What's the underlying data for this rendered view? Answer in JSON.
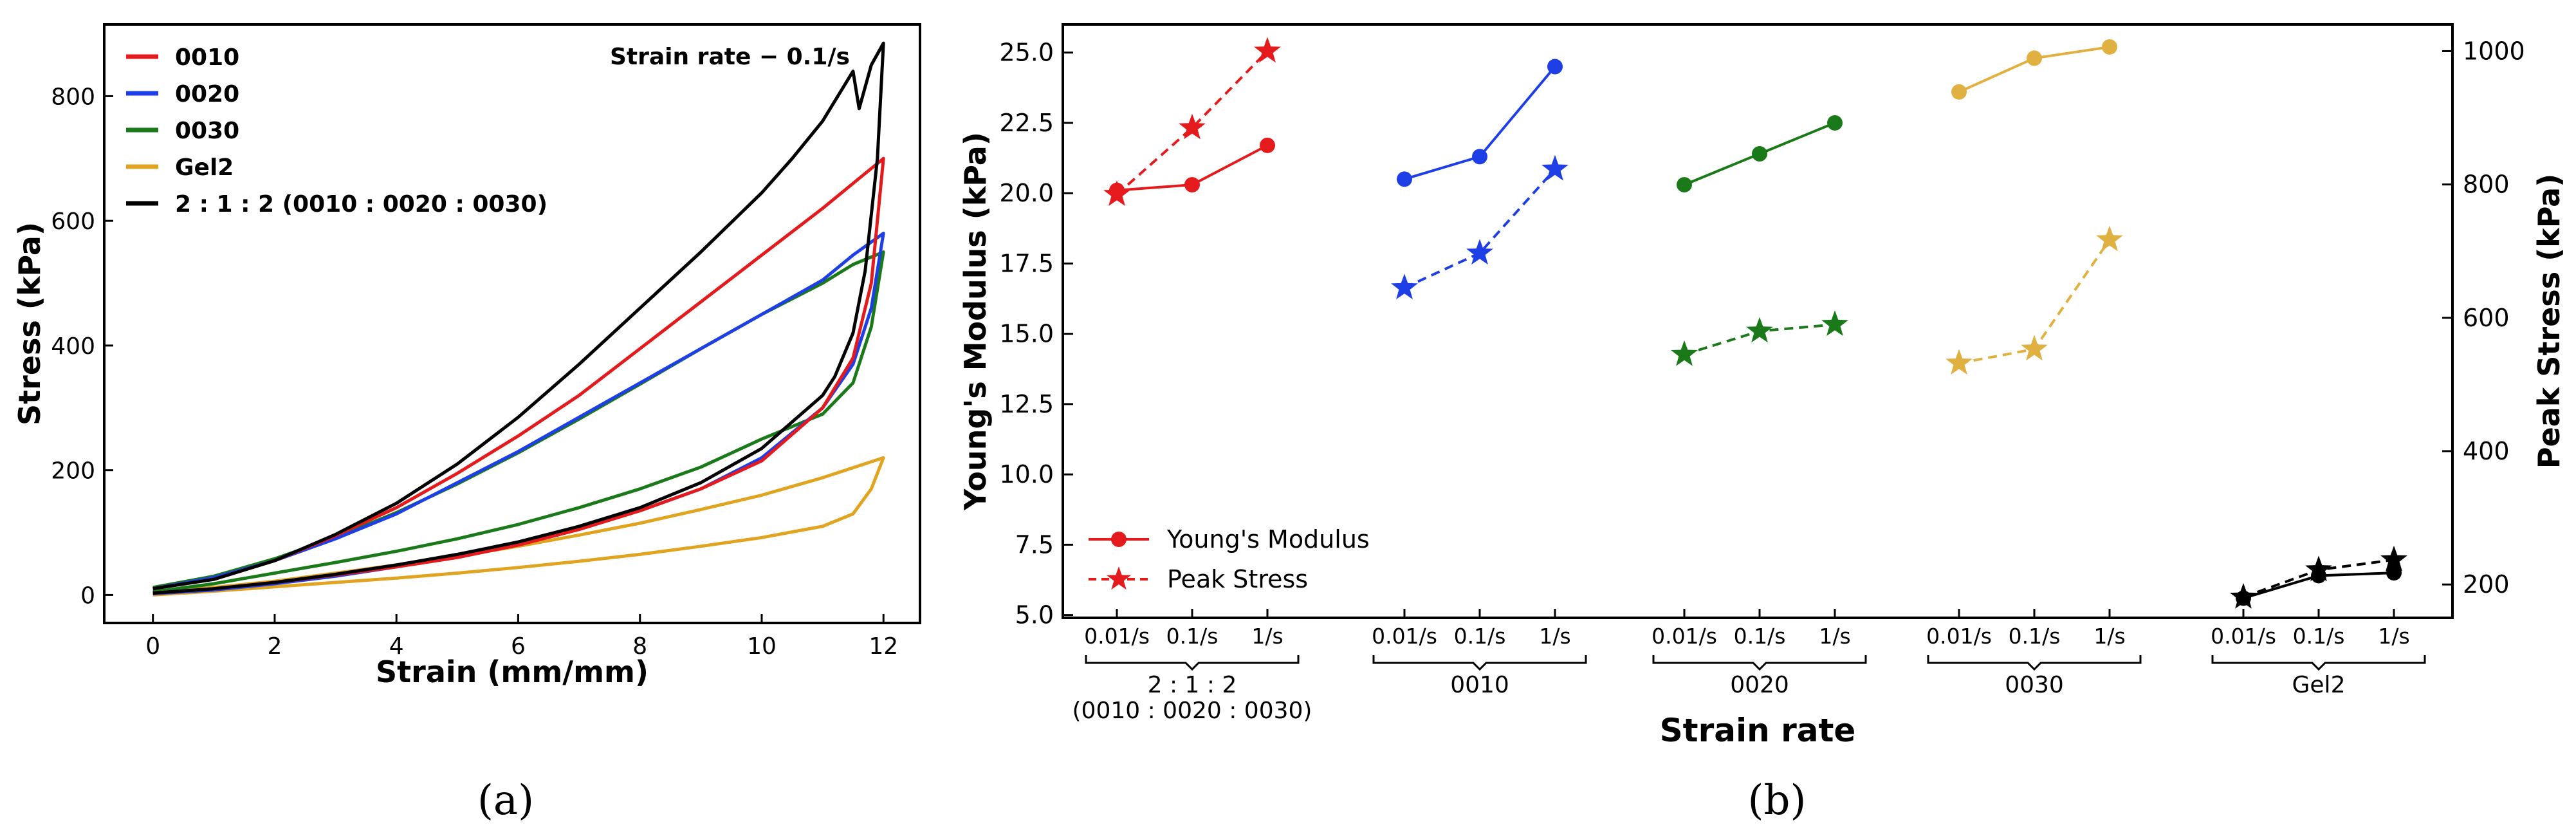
{
  "panels": {
    "a_label": "(a)",
    "b_label": "(b)"
  },
  "chart_data": [
    {
      "type": "line",
      "panel": "(a)",
      "title": "",
      "annotation": "Strain rate − 0.1/s",
      "xlabel": "Strain (mm/mm)",
      "ylabel": "Stress (kPa)",
      "xlim": [
        -0.8,
        12.6
      ],
      "ylim": [
        -45,
        915
      ],
      "xticks": [
        0,
        2,
        4,
        6,
        8,
        10,
        12
      ],
      "yticks": [
        0,
        200,
        400,
        600,
        800
      ],
      "legend_position": "top-left",
      "series": [
        {
          "name": "0010",
          "color": "#e41a1c",
          "loading": [
            [
              0,
              10
            ],
            [
              1,
              25
            ],
            [
              2,
              55
            ],
            [
              3,
              95
            ],
            [
              4,
              140
            ],
            [
              5,
              195
            ],
            [
              6,
              255
            ],
            [
              7,
              320
            ],
            [
              8,
              395
            ],
            [
              9,
              470
            ],
            [
              10,
              545
            ],
            [
              11,
              620
            ],
            [
              11.5,
              660
            ],
            [
              12,
              700
            ]
          ],
          "unloading": [
            [
              12,
              700
            ],
            [
              11.8,
              500
            ],
            [
              11.5,
              380
            ],
            [
              11,
              300
            ],
            [
              10,
              215
            ],
            [
              9,
              170
            ],
            [
              8,
              135
            ],
            [
              7,
              105
            ],
            [
              6,
              80
            ],
            [
              5,
              60
            ],
            [
              4,
              45
            ],
            [
              3,
              32
            ],
            [
              2,
              20
            ],
            [
              1,
              10
            ],
            [
              0,
              3
            ]
          ]
        },
        {
          "name": "0020",
          "color": "#1f3fe6",
          "loading": [
            [
              0,
              10
            ],
            [
              1,
              28
            ],
            [
              2,
              55
            ],
            [
              3,
              90
            ],
            [
              4,
              130
            ],
            [
              5,
              180
            ],
            [
              6,
              230
            ],
            [
              7,
              285
            ],
            [
              8,
              340
            ],
            [
              9,
              395
            ],
            [
              10,
              450
            ],
            [
              11,
              505
            ],
            [
              11.5,
              545
            ],
            [
              12,
              580
            ]
          ],
          "unloading": [
            [
              12,
              580
            ],
            [
              11.8,
              460
            ],
            [
              11.5,
              370
            ],
            [
              11,
              300
            ],
            [
              10,
              220
            ],
            [
              9,
              170
            ],
            [
              8,
              135
            ],
            [
              7,
              108
            ],
            [
              6,
              82
            ],
            [
              5,
              62
            ],
            [
              4,
              45
            ],
            [
              3,
              30
            ],
            [
              2,
              18
            ],
            [
              1,
              8
            ],
            [
              0,
              2
            ]
          ]
        },
        {
          "name": "0030",
          "color": "#1a7a1a",
          "loading": [
            [
              0,
              12
            ],
            [
              1,
              30
            ],
            [
              2,
              58
            ],
            [
              3,
              92
            ],
            [
              4,
              132
            ],
            [
              5,
              178
            ],
            [
              6,
              228
            ],
            [
              7,
              282
            ],
            [
              8,
              338
            ],
            [
              9,
              395
            ],
            [
              10,
              450
            ],
            [
              11,
              500
            ],
            [
              11.5,
              530
            ],
            [
              12,
              550
            ]
          ],
          "unloading": [
            [
              12,
              550
            ],
            [
              11.8,
              430
            ],
            [
              11.5,
              340
            ],
            [
              11,
              290
            ],
            [
              10,
              250
            ],
            [
              9,
              205
            ],
            [
              8,
              170
            ],
            [
              7,
              140
            ],
            [
              6,
              113
            ],
            [
              5,
              90
            ],
            [
              4,
              70
            ],
            [
              3,
              52
            ],
            [
              2,
              35
            ],
            [
              1,
              18
            ],
            [
              0,
              5
            ]
          ]
        },
        {
          "name": "Gel2",
          "color": "#e0a420",
          "loading": [
            [
              0,
              4
            ],
            [
              1,
              12
            ],
            [
              2,
              22
            ],
            [
              3,
              35
            ],
            [
              4,
              48
            ],
            [
              5,
              62
            ],
            [
              6,
              78
            ],
            [
              7,
              96
            ],
            [
              8,
              115
            ],
            [
              9,
              137
            ],
            [
              10,
              160
            ],
            [
              11,
              188
            ],
            [
              11.5,
              204
            ],
            [
              12,
              220
            ]
          ],
          "unloading": [
            [
              12,
              220
            ],
            [
              11.8,
              170
            ],
            [
              11.5,
              130
            ],
            [
              11,
              110
            ],
            [
              10,
              92
            ],
            [
              9,
              78
            ],
            [
              8,
              65
            ],
            [
              7,
              54
            ],
            [
              6,
              44
            ],
            [
              5,
              35
            ],
            [
              4,
              27
            ],
            [
              3,
              20
            ],
            [
              2,
              13
            ],
            [
              1,
              6
            ],
            [
              0,
              0
            ]
          ]
        },
        {
          "name": "2 : 1 : 2 (0010 : 0020 : 0030)",
          "color": "#000000",
          "loading": [
            [
              0,
              10
            ],
            [
              1,
              25
            ],
            [
              2,
              55
            ],
            [
              3,
              97
            ],
            [
              4,
              147
            ],
            [
              5,
              210
            ],
            [
              6,
              285
            ],
            [
              7,
              370
            ],
            [
              8,
              460
            ],
            [
              9,
              550
            ],
            [
              10,
              645
            ],
            [
              10.5,
              700
            ],
            [
              11,
              760
            ],
            [
              11.5,
              840
            ],
            [
              11.6,
              780
            ],
            [
              11.8,
              850
            ],
            [
              12,
              885
            ]
          ],
          "unloading": [
            [
              12,
              885
            ],
            [
              11.9,
              700
            ],
            [
              11.7,
              520
            ],
            [
              11.5,
              420
            ],
            [
              11.2,
              350
            ],
            [
              11,
              320
            ],
            [
              10,
              235
            ],
            [
              9,
              180
            ],
            [
              8,
              140
            ],
            [
              7,
              110
            ],
            [
              6,
              85
            ],
            [
              5,
              65
            ],
            [
              4,
              48
            ],
            [
              3,
              33
            ],
            [
              2,
              20
            ],
            [
              1,
              10
            ],
            [
              0,
              3
            ]
          ]
        }
      ]
    },
    {
      "type": "line",
      "panel": "(b)",
      "title": "",
      "xlabel": "Strain rate",
      "ylabel": "Young's Modulus (kPa)",
      "ylabel_right": "Peak Stress (kPa)",
      "ylim": [
        4.9,
        26
      ],
      "ylim_right": [
        150,
        1040
      ],
      "yticks": [
        5.0,
        7.5,
        10.0,
        12.5,
        15.0,
        17.5,
        20.0,
        22.5,
        25.0
      ],
      "yticks_labels": [
        "5.0",
        "7.5",
        "10.0",
        "12.5",
        "15.0",
        "17.5",
        "20.0",
        "22.5",
        "25.0"
      ],
      "yticks_right": [
        200,
        400,
        600,
        800,
        1000
      ],
      "x_rate_labels": [
        "0.01/s",
        "0.1/s",
        "1/s"
      ],
      "legend": [
        {
          "label": "Young's Modulus",
          "style": "solid-circle"
        },
        {
          "label": "Peak Stress",
          "style": "dashed-star"
        }
      ],
      "legend_position": "lower-left",
      "groups": [
        {
          "name": "2 : 1 : 2",
          "name2": "(0010 : 0020 : 0030)",
          "color": "#e41a1c",
          "youngs_modulus": [
            20.1,
            20.3,
            21.7
          ],
          "peak_stress": [
            785,
            885,
            1000
          ]
        },
        {
          "name": "0010",
          "color": "#1f3fe6",
          "youngs_modulus": [
            20.5,
            21.3,
            24.5
          ],
          "peak_stress": [
            645,
            697,
            823
          ]
        },
        {
          "name": "0020",
          "color": "#1a7a1a",
          "youngs_modulus": [
            20.3,
            21.4,
            22.5
          ],
          "peak_stress": [
            545,
            580,
            590
          ]
        },
        {
          "name": "0030",
          "color": "#e0b040",
          "youngs_modulus": [
            23.6,
            24.8,
            25.2
          ],
          "peak_stress": [
            532,
            553,
            717
          ]
        },
        {
          "name": "Gel2",
          "color": "#000000",
          "youngs_modulus": [
            5.6,
            6.4,
            6.5
          ],
          "peak_stress": [
            181,
            222,
            237
          ]
        }
      ]
    }
  ]
}
